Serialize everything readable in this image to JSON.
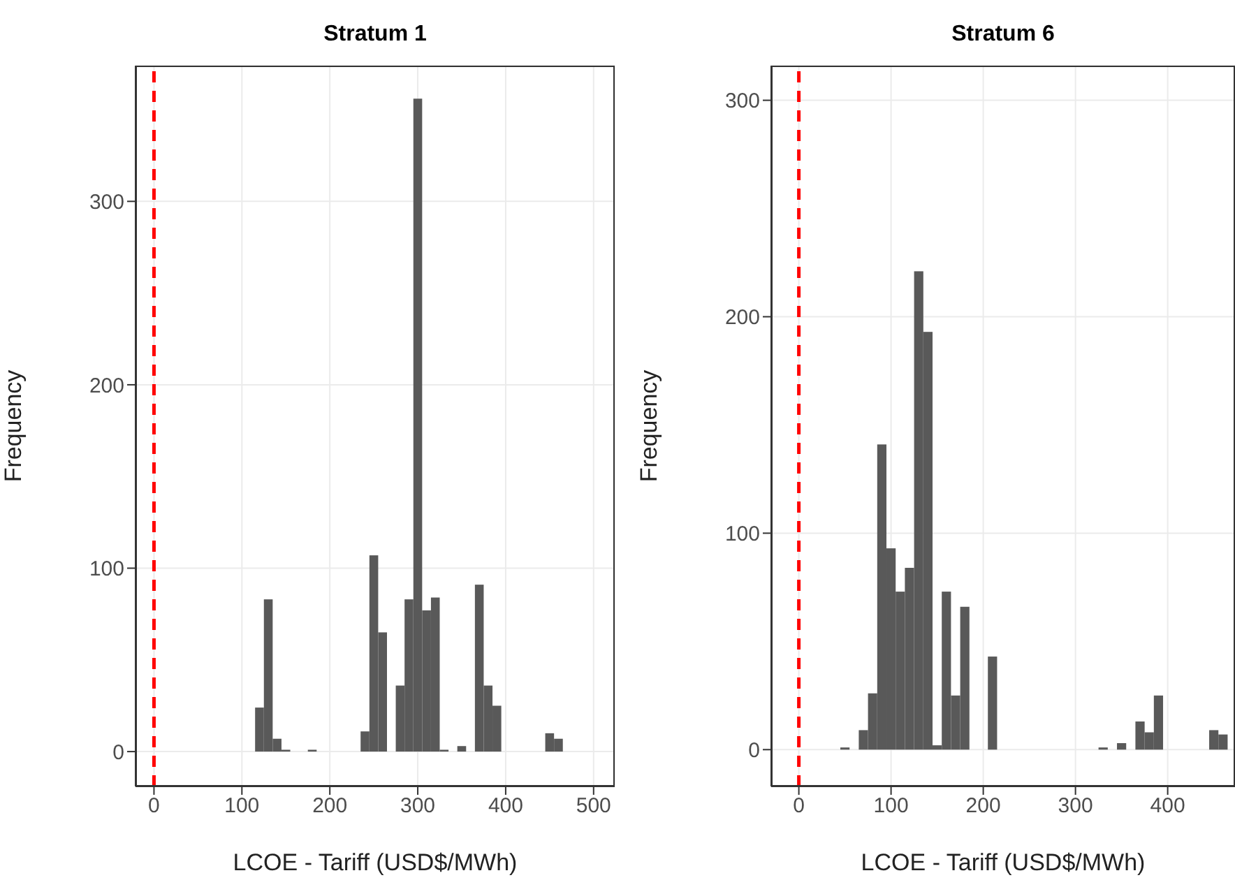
{
  "chart_data": [
    {
      "type": "histogram",
      "title": "Stratum 1",
      "xlabel": "LCOE - Tariff (USD$/MWh)",
      "ylabel": "Frequency",
      "color": "#595959",
      "bins": [
        115,
        125,
        135,
        145,
        155,
        165,
        175,
        185,
        195,
        205,
        215,
        225,
        235,
        245,
        255,
        265,
        275,
        285,
        295,
        305,
        315,
        325,
        335,
        345,
        355,
        365,
        375,
        385,
        395,
        405,
        415,
        425,
        435,
        445,
        455,
        465
      ],
      "values": [
        24,
        83,
        7,
        1,
        0,
        0,
        1,
        0,
        0,
        0,
        0,
        0,
        11,
        107,
        65,
        0,
        36,
        83,
        356,
        77,
        84,
        1,
        0,
        3,
        0,
        91,
        36,
        25,
        0,
        0,
        0,
        0,
        0,
        10,
        7
      ],
      "xlim": [
        -21,
        524
      ],
      "ylim": [
        -19,
        374
      ],
      "xticks": [
        0,
        100,
        200,
        300,
        400,
        500
      ],
      "yticks": [
        0,
        100,
        200,
        300
      ],
      "grid": true,
      "ref_lines": [
        {
          "axis": "x",
          "value": 0,
          "color": "#ff0000",
          "line_style": "dashed"
        }
      ]
    },
    {
      "type": "histogram",
      "title": "Stratum 6",
      "xlabel": "LCOE - Tariff (USD$/MWh)",
      "ylabel": "Frequency",
      "color": "#595959",
      "bins": [
        45,
        55,
        65,
        75,
        85,
        95,
        105,
        115,
        125,
        135,
        145,
        155,
        165,
        175,
        185,
        195,
        205,
        215,
        225,
        235,
        245,
        255,
        265,
        275,
        285,
        295,
        305,
        315,
        325,
        335,
        345,
        355,
        365,
        375,
        385,
        395,
        405,
        415,
        425,
        435,
        445,
        455,
        465
      ],
      "values": [
        1,
        0,
        9,
        26,
        141,
        93,
        73,
        84,
        221,
        193,
        2,
        73,
        25,
        66,
        0,
        0,
        43,
        0,
        0,
        0,
        0,
        0,
        0,
        0,
        0,
        0,
        0,
        0,
        1,
        0,
        3,
        0,
        13,
        8,
        25,
        0,
        0,
        0,
        0,
        0,
        9,
        7
      ],
      "xlim": [
        -30,
        473
      ],
      "ylim": [
        -17,
        316
      ],
      "xticks": [
        0,
        100,
        200,
        300,
        400
      ],
      "yticks": [
        0,
        100,
        200,
        300
      ],
      "grid": true,
      "ref_lines": [
        {
          "axis": "x",
          "value": 0,
          "color": "#ff0000",
          "line_style": "dashed"
        }
      ]
    }
  ]
}
